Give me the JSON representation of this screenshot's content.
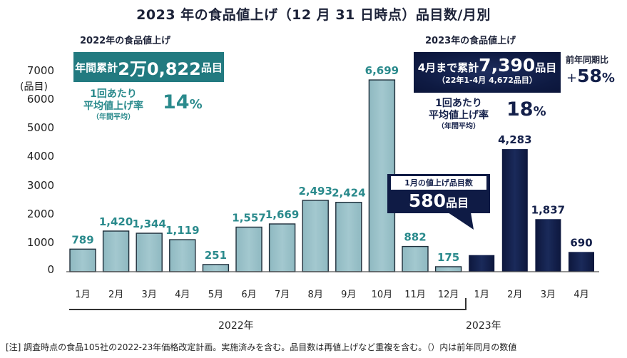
{
  "title": "2023 年の食品値上げ（12 月 31 日時点）品目数/月別",
  "panel_2022": {
    "heading": "2022年の食品値上げ",
    "total_prefix": "年間累計",
    "total_value": "2万0,822",
    "total_suffix": "品目",
    "rate_label_1": "1回あたり",
    "rate_label_2": "平均値上げ率",
    "rate_label_3": "（年間平均）",
    "rate_value": "14",
    "rate_unit": "%",
    "accent_color": "#227a80"
  },
  "panel_2023": {
    "heading": "2023年の食品値上げ",
    "total_prefix": "4月まで累計",
    "total_value": "7,390",
    "total_suffix": "品目",
    "comparison": "（22年1-4月 4,672品目）",
    "yoy_label": "前年同期比",
    "yoy_sign": "+",
    "yoy_value": "58",
    "yoy_unit": "%",
    "rate_label_1": "1回あたり",
    "rate_label_2": "平均値上げ率",
    "rate_label_3": "（年間平均）",
    "rate_value": "18",
    "rate_unit": "%",
    "accent_color": "#0f1b45"
  },
  "callout": {
    "label": "1月の値上げ品目数",
    "value": "580",
    "unit": "品目"
  },
  "footer": {
    "year_2022": "2022年",
    "year_2023": "2023年",
    "note": "[注]  調査時点の食品105社の2022-23年価格改定計画。実施済みを含む。品目数は再値上げなど重複を含む。（）内は前年同月の数値"
  },
  "chart_data": {
    "type": "bar",
    "title": "2023 年の食品値上げ（12 月 31 日時点）品目数/月別",
    "xlabel": "",
    "ylabel": "(品目)",
    "ylim": [
      0,
      7000
    ],
    "yticks": [
      0,
      1000,
      2000,
      3000,
      4000,
      5000,
      6000,
      7000
    ],
    "grid": false,
    "categories": [
      "1月",
      "2月",
      "3月",
      "4月",
      "5月",
      "6月",
      "7月",
      "8月",
      "9月",
      "10月",
      "11月",
      "12月",
      "1月",
      "2月",
      "3月",
      "4月"
    ],
    "year_groups": [
      {
        "name": "2022年",
        "from": 0,
        "to": 11
      },
      {
        "name": "2023年",
        "from": 12,
        "to": 15
      }
    ],
    "series": [
      {
        "name": "2022年",
        "color": "#92bcc4",
        "label_color": "#2a8a8c",
        "values": [
          789,
          1420,
          1344,
          1119,
          251,
          1557,
          1669,
          2493,
          2424,
          6699,
          882,
          175,
          null,
          null,
          null,
          null
        ],
        "labels": [
          "789",
          "1,420",
          "1,344",
          "1,119",
          "251",
          "1,557",
          "1,669",
          "2,493",
          "2,424",
          "6,699",
          "882",
          "175",
          null,
          null,
          null,
          null
        ]
      },
      {
        "name": "2023年",
        "color": "#0f1b45",
        "label_color": "#14204a",
        "values": [
          null,
          null,
          null,
          null,
          null,
          null,
          null,
          null,
          null,
          null,
          null,
          null,
          580,
          4283,
          1837,
          690
        ],
        "labels": [
          null,
          null,
          null,
          null,
          null,
          null,
          null,
          null,
          null,
          null,
          null,
          null,
          null,
          "4,283",
          "1,837",
          "690"
        ]
      }
    ]
  }
}
